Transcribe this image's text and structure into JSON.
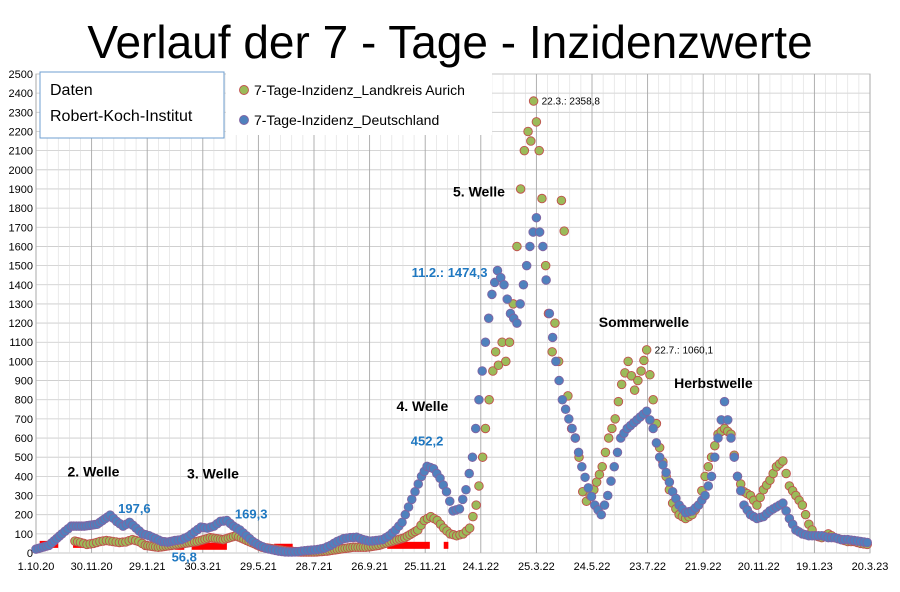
{
  "chart_data": {
    "type": "scatter",
    "title": "Verlauf der 7 - Tage - Inzidenzwerte",
    "source_box": [
      "Daten",
      "Robert-Koch-Institut"
    ],
    "ylim": [
      0,
      2500
    ],
    "ytick_step": 100,
    "x_range": [
      "2020-10-01",
      "2023-03-20"
    ],
    "x_ticks": [
      "1.10.20",
      "30.11.20",
      "29.1.21",
      "30.3.21",
      "29.5.21",
      "28.7.21",
      "26.9.21",
      "25.11.21",
      "24.1.22",
      "25.3.22",
      "24.5.22",
      "23.7.22",
      "21.9.22",
      "20.11.22",
      "19.1.23",
      "20.3.23"
    ],
    "grid": true,
    "legend_position": "top-left",
    "colors": {
      "aurich": "#9bbb59",
      "aurich_edge": "#c0504d",
      "deutschland": "#4f81bd",
      "deutschland_edge": "#8064a2",
      "red_markers": "#ff0000",
      "blue_label": "#1f78c1"
    },
    "series": [
      {
        "name": "7-Tage-Inzidenz_Landkreis Aurich",
        "key": "aurich",
        "points": [
          [
            "2020-11-12",
            62
          ],
          [
            "2020-11-18",
            55
          ],
          [
            "2020-11-25",
            45
          ],
          [
            "2020-12-02",
            50
          ],
          [
            "2020-12-09",
            60
          ],
          [
            "2020-12-16",
            65
          ],
          [
            "2020-12-23",
            60
          ],
          [
            "2020-12-30",
            55
          ],
          [
            "2021-01-06",
            58
          ],
          [
            "2021-01-13",
            70
          ],
          [
            "2021-01-20",
            60
          ],
          [
            "2021-01-27",
            40
          ],
          [
            "2021-02-10",
            30
          ],
          [
            "2021-02-24",
            40
          ],
          [
            "2021-03-10",
            50
          ],
          [
            "2021-03-24",
            60
          ],
          [
            "2021-04-07",
            80
          ],
          [
            "2021-04-21",
            70
          ],
          [
            "2021-05-05",
            90
          ],
          [
            "2021-05-19",
            60
          ],
          [
            "2021-06-02",
            30
          ],
          [
            "2021-06-16",
            20
          ],
          [
            "2021-06-30",
            10
          ],
          [
            "2021-07-14",
            5
          ],
          [
            "2021-07-28",
            5
          ],
          [
            "2021-08-11",
            10
          ],
          [
            "2021-08-25",
            20
          ],
          [
            "2021-09-08",
            30
          ],
          [
            "2021-09-22",
            30
          ],
          [
            "2021-10-06",
            40
          ],
          [
            "2021-10-20",
            60
          ],
          [
            "2021-11-03",
            80
          ],
          [
            "2021-11-17",
            120
          ],
          [
            "2021-11-24",
            170
          ],
          [
            "2021-12-01",
            190
          ],
          [
            "2021-12-08",
            170
          ],
          [
            "2021-12-15",
            130
          ],
          [
            "2021-12-22",
            100
          ],
          [
            "2021-12-29",
            90
          ],
          [
            "2022-01-05",
            100
          ],
          [
            "2022-01-12",
            130
          ],
          [
            "2022-01-19",
            250
          ],
          [
            "2022-01-22",
            350
          ],
          [
            "2022-01-26",
            500
          ],
          [
            "2022-01-29",
            650
          ],
          [
            "2022-02-02",
            800
          ],
          [
            "2022-02-06",
            950
          ],
          [
            "2022-02-09",
            1050
          ],
          [
            "2022-02-12",
            980
          ],
          [
            "2022-02-16",
            1100
          ],
          [
            "2022-02-20",
            1000
          ],
          [
            "2022-02-24",
            1100
          ],
          [
            "2022-02-28",
            1300
          ],
          [
            "2022-03-04",
            1600
          ],
          [
            "2022-03-08",
            1900
          ],
          [
            "2022-03-12",
            2100
          ],
          [
            "2022-03-16",
            2200
          ],
          [
            "2022-03-19",
            2150
          ],
          [
            "2022-03-22",
            2358.8
          ],
          [
            "2022-03-25",
            2250
          ],
          [
            "2022-03-28",
            2100
          ],
          [
            "2022-03-31",
            1850
          ],
          [
            "2022-04-04",
            1500
          ],
          [
            "2022-04-07",
            1250
          ],
          [
            "2022-04-11",
            1050
          ],
          [
            "2022-04-14",
            1200
          ],
          [
            "2022-04-18",
            1000
          ],
          [
            "2022-04-21",
            1840
          ],
          [
            "2022-04-24",
            1680
          ],
          [
            "2022-04-28",
            820
          ],
          [
            "2022-05-02",
            650
          ],
          [
            "2022-05-06",
            600
          ],
          [
            "2022-05-10",
            500
          ],
          [
            "2022-05-14",
            320
          ],
          [
            "2022-05-18",
            270
          ],
          [
            "2022-05-22",
            300
          ],
          [
            "2022-05-26",
            330
          ],
          [
            "2022-06-04",
            450
          ],
          [
            "2022-06-11",
            600
          ],
          [
            "2022-06-18",
            700
          ],
          [
            "2022-06-25",
            880
          ],
          [
            "2022-07-02",
            1000
          ],
          [
            "2022-07-09",
            850
          ],
          [
            "2022-07-16",
            950
          ],
          [
            "2022-07-22",
            1060.1
          ],
          [
            "2022-07-29",
            800
          ],
          [
            "2022-08-05",
            550
          ],
          [
            "2022-08-12",
            400
          ],
          [
            "2022-08-19",
            260
          ],
          [
            "2022-08-26",
            200
          ],
          [
            "2022-09-02",
            180
          ],
          [
            "2022-09-09",
            200
          ],
          [
            "2022-09-16",
            250
          ],
          [
            "2022-09-23",
            400
          ],
          [
            "2022-09-30",
            500
          ],
          [
            "2022-10-07",
            620
          ],
          [
            "2022-10-14",
            650
          ],
          [
            "2022-10-21",
            620
          ],
          [
            "2022-10-28",
            400
          ],
          [
            "2022-11-04",
            320
          ],
          [
            "2022-11-11",
            300
          ],
          [
            "2022-11-18",
            250
          ],
          [
            "2022-11-25",
            330
          ],
          [
            "2022-12-02",
            380
          ],
          [
            "2022-12-09",
            450
          ],
          [
            "2022-12-16",
            480
          ],
          [
            "2022-12-23",
            350
          ],
          [
            "2022-12-30",
            300
          ],
          [
            "2023-01-06",
            250
          ],
          [
            "2023-01-13",
            150
          ],
          [
            "2023-01-20",
            90
          ],
          [
            "2023-01-27",
            80
          ],
          [
            "2023-02-03",
            100
          ],
          [
            "2023-02-10",
            80
          ],
          [
            "2023-02-17",
            70
          ],
          [
            "2023-02-24",
            60
          ],
          [
            "2023-03-03",
            60
          ],
          [
            "2023-03-10",
            50
          ],
          [
            "2023-03-17",
            45
          ]
        ]
      },
      {
        "name": "7-Tage-Inzidenz_Deutschland",
        "key": "deutschland",
        "points": [
          [
            "2020-10-01",
            20
          ],
          [
            "2020-10-15",
            40
          ],
          [
            "2020-10-29",
            100
          ],
          [
            "2020-11-08",
            140
          ],
          [
            "2020-11-22",
            140
          ],
          [
            "2020-12-06",
            150
          ],
          [
            "2020-12-20",
            197.6
          ],
          [
            "2020-12-27",
            165
          ],
          [
            "2021-01-03",
            140
          ],
          [
            "2021-01-10",
            160
          ],
          [
            "2021-01-17",
            130
          ],
          [
            "2021-01-24",
            100
          ],
          [
            "2021-01-31",
            90
          ],
          [
            "2021-02-07",
            75
          ],
          [
            "2021-02-14",
            60
          ],
          [
            "2021-02-20",
            56.8
          ],
          [
            "2021-02-28",
            65
          ],
          [
            "2021-03-07",
            70
          ],
          [
            "2021-03-14",
            85
          ],
          [
            "2021-03-21",
            110
          ],
          [
            "2021-03-28",
            135
          ],
          [
            "2021-04-04",
            130
          ],
          [
            "2021-04-11",
            140
          ],
          [
            "2021-04-18",
            165
          ],
          [
            "2021-04-25",
            169.3
          ],
          [
            "2021-05-02",
            140
          ],
          [
            "2021-05-09",
            120
          ],
          [
            "2021-05-16",
            90
          ],
          [
            "2021-05-23",
            60
          ],
          [
            "2021-05-30",
            40
          ],
          [
            "2021-06-06",
            25
          ],
          [
            "2021-06-13",
            17
          ],
          [
            "2021-06-20",
            10
          ],
          [
            "2021-06-27",
            6
          ],
          [
            "2021-07-04",
            5
          ],
          [
            "2021-07-11",
            7
          ],
          [
            "2021-07-18",
            12
          ],
          [
            "2021-07-25",
            15
          ],
          [
            "2021-08-01",
            18
          ],
          [
            "2021-08-08",
            25
          ],
          [
            "2021-08-15",
            40
          ],
          [
            "2021-08-22",
            60
          ],
          [
            "2021-08-29",
            75
          ],
          [
            "2021-09-05",
            80
          ],
          [
            "2021-09-12",
            82
          ],
          [
            "2021-09-19",
            70
          ],
          [
            "2021-09-26",
            62
          ],
          [
            "2021-10-03",
            65
          ],
          [
            "2021-10-10",
            70
          ],
          [
            "2021-10-17",
            90
          ],
          [
            "2021-10-24",
            120
          ],
          [
            "2021-10-31",
            160
          ],
          [
            "2021-11-07",
            240
          ],
          [
            "2021-11-14",
            320
          ],
          [
            "2021-11-21",
            400
          ],
          [
            "2021-11-27",
            452.2
          ],
          [
            "2021-12-04",
            440
          ],
          [
            "2021-12-11",
            390
          ],
          [
            "2021-12-18",
            320
          ],
          [
            "2021-12-25",
            220
          ],
          [
            "2022-01-01",
            230
          ],
          [
            "2022-01-08",
            330
          ],
          [
            "2022-01-15",
            500
          ],
          [
            "2022-01-22",
            800
          ],
          [
            "2022-01-29",
            1100
          ],
          [
            "2022-02-05",
            1350
          ],
          [
            "2022-02-11",
            1474.3
          ],
          [
            "2022-02-18",
            1400
          ],
          [
            "2022-02-25",
            1250
          ],
          [
            "2022-03-04",
            1200
          ],
          [
            "2022-03-11",
            1400
          ],
          [
            "2022-03-18",
            1600
          ],
          [
            "2022-03-25",
            1750
          ],
          [
            "2022-04-01",
            1600
          ],
          [
            "2022-04-08",
            1250
          ],
          [
            "2022-04-15",
            1000
          ],
          [
            "2022-04-22",
            800
          ],
          [
            "2022-04-29",
            700
          ],
          [
            "2022-05-06",
            600
          ],
          [
            "2022-05-13",
            450
          ],
          [
            "2022-05-20",
            340
          ],
          [
            "2022-05-27",
            250
          ],
          [
            "2022-06-03",
            200
          ],
          [
            "2022-06-10",
            300
          ],
          [
            "2022-06-17",
            450
          ],
          [
            "2022-06-24",
            600
          ],
          [
            "2022-07-01",
            650
          ],
          [
            "2022-07-08",
            680
          ],
          [
            "2022-07-15",
            710
          ],
          [
            "2022-07-22",
            740
          ],
          [
            "2022-07-29",
            650
          ],
          [
            "2022-08-05",
            500
          ],
          [
            "2022-08-12",
            420
          ],
          [
            "2022-08-19",
            320
          ],
          [
            "2022-08-26",
            250
          ],
          [
            "2022-09-02",
            210
          ],
          [
            "2022-09-09",
            220
          ],
          [
            "2022-09-16",
            250
          ],
          [
            "2022-09-23",
            300
          ],
          [
            "2022-09-30",
            400
          ],
          [
            "2022-10-07",
            600
          ],
          [
            "2022-10-14",
            790
          ],
          [
            "2022-10-21",
            600
          ],
          [
            "2022-10-28",
            400
          ],
          [
            "2022-11-04",
            250
          ],
          [
            "2022-11-11",
            200
          ],
          [
            "2022-11-18",
            180
          ],
          [
            "2022-11-25",
            190
          ],
          [
            "2022-12-02",
            220
          ],
          [
            "2022-12-09",
            240
          ],
          [
            "2022-12-16",
            260
          ],
          [
            "2022-12-23",
            180
          ],
          [
            "2022-12-30",
            120
          ],
          [
            "2023-01-06",
            100
          ],
          [
            "2023-01-13",
            90
          ],
          [
            "2023-01-20",
            90
          ],
          [
            "2023-01-27",
            90
          ],
          [
            "2023-02-03",
            80
          ],
          [
            "2023-02-10",
            80
          ],
          [
            "2023-02-17",
            70
          ],
          [
            "2023-02-24",
            70
          ],
          [
            "2023-03-03",
            65
          ],
          [
            "2023-03-10",
            60
          ],
          [
            "2023-03-17",
            55
          ]
        ]
      }
    ],
    "red_markers": [
      [
        "2020-10-05",
        "2020-10-25",
        45
      ],
      [
        "2020-11-10",
        "2020-11-30",
        45
      ],
      [
        "2021-02-28",
        "2021-03-10",
        35
      ],
      [
        "2021-03-18",
        "2021-04-25",
        35
      ],
      [
        "2021-06-15",
        "2021-07-05",
        30
      ],
      [
        "2021-10-15",
        "2021-11-30",
        40
      ],
      [
        "2021-12-15",
        "2021-12-20",
        40
      ]
    ],
    "annotations": [
      {
        "text": "2. Welle",
        "x": "2020-12-02",
        "y": 400,
        "style": "black",
        "anchor": "middle"
      },
      {
        "text": "197,6",
        "x": "2020-12-20",
        "y": 210,
        "style": "blue",
        "anchor": "start",
        "dx": 8
      },
      {
        "text": "56,8",
        "x": "2021-02-20",
        "y": 70,
        "style": "blue",
        "anchor": "start",
        "dx": 4,
        "dy": 22
      },
      {
        "text": "3. Welle",
        "x": "2021-04-10",
        "y": 390,
        "style": "black",
        "anchor": "middle"
      },
      {
        "text": "169,3",
        "x": "2021-04-25",
        "y": 180,
        "style": "blue",
        "anchor": "start",
        "dx": 8
      },
      {
        "text": "4. Welle",
        "x": "2021-11-22",
        "y": 740,
        "style": "black",
        "anchor": "middle"
      },
      {
        "text": "452,2",
        "x": "2021-11-27",
        "y": 560,
        "style": "blue",
        "anchor": "middle"
      },
      {
        "text": "5. Welle",
        "x": "2022-01-22",
        "y": 1860,
        "style": "black",
        "anchor": "middle"
      },
      {
        "text": "11.2.: 1474,3",
        "x": "2022-02-11",
        "y": 1440,
        "style": "blue",
        "anchor": "end",
        "dx": -10
      },
      {
        "text": "22.3.: 2358,8",
        "x": "2022-03-22",
        "y": 2340,
        "style": "small",
        "anchor": "start",
        "dx": 8
      },
      {
        "text": "Sommerwelle",
        "x": "2022-07-19",
        "y": 1180,
        "style": "black",
        "anchor": "middle"
      },
      {
        "text": "22.7.: 1060,1",
        "x": "2022-07-22",
        "y": 1040,
        "style": "small",
        "anchor": "start",
        "dx": 8
      },
      {
        "text": "Herbstwelle",
        "x": "2022-10-02",
        "y": 860,
        "style": "black",
        "anchor": "middle"
      }
    ]
  }
}
